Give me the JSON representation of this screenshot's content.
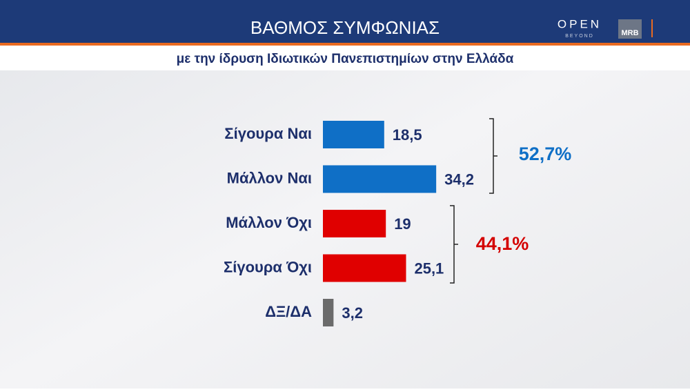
{
  "header": {
    "title": "ΒΑΘΜΟΣ ΣΥΜΦΩΝΙΑΣ",
    "logo_main": "OPEN",
    "logo_sub": "BEYOND",
    "logo_partner": "MRB"
  },
  "chart_data": {
    "type": "bar",
    "orientation": "horizontal",
    "subtitle": "με την ίδρυση Ιδιωτικών Πανεπιστημίων στην Ελλάδα",
    "categories": [
      "Σίγουρα Ναι",
      "Μάλλον Ναι",
      "Μάλλον Όχι",
      "Σίγουρα Όχι",
      "ΔΞ/ΔΑ"
    ],
    "values": [
      18.5,
      34.2,
      19,
      25.1,
      3.2
    ],
    "value_labels": [
      "18,5",
      "34,2",
      "19",
      "25,1",
      "3,2"
    ],
    "colors": [
      "#0f6fc6",
      "#0f6fc6",
      "#e00000",
      "#e00000",
      "#6b6b6b"
    ],
    "annotations": [
      {
        "text": "52,7%",
        "color": "#0f6fc6"
      },
      {
        "text": "44,1%",
        "color": "#d40000"
      }
    ]
  }
}
